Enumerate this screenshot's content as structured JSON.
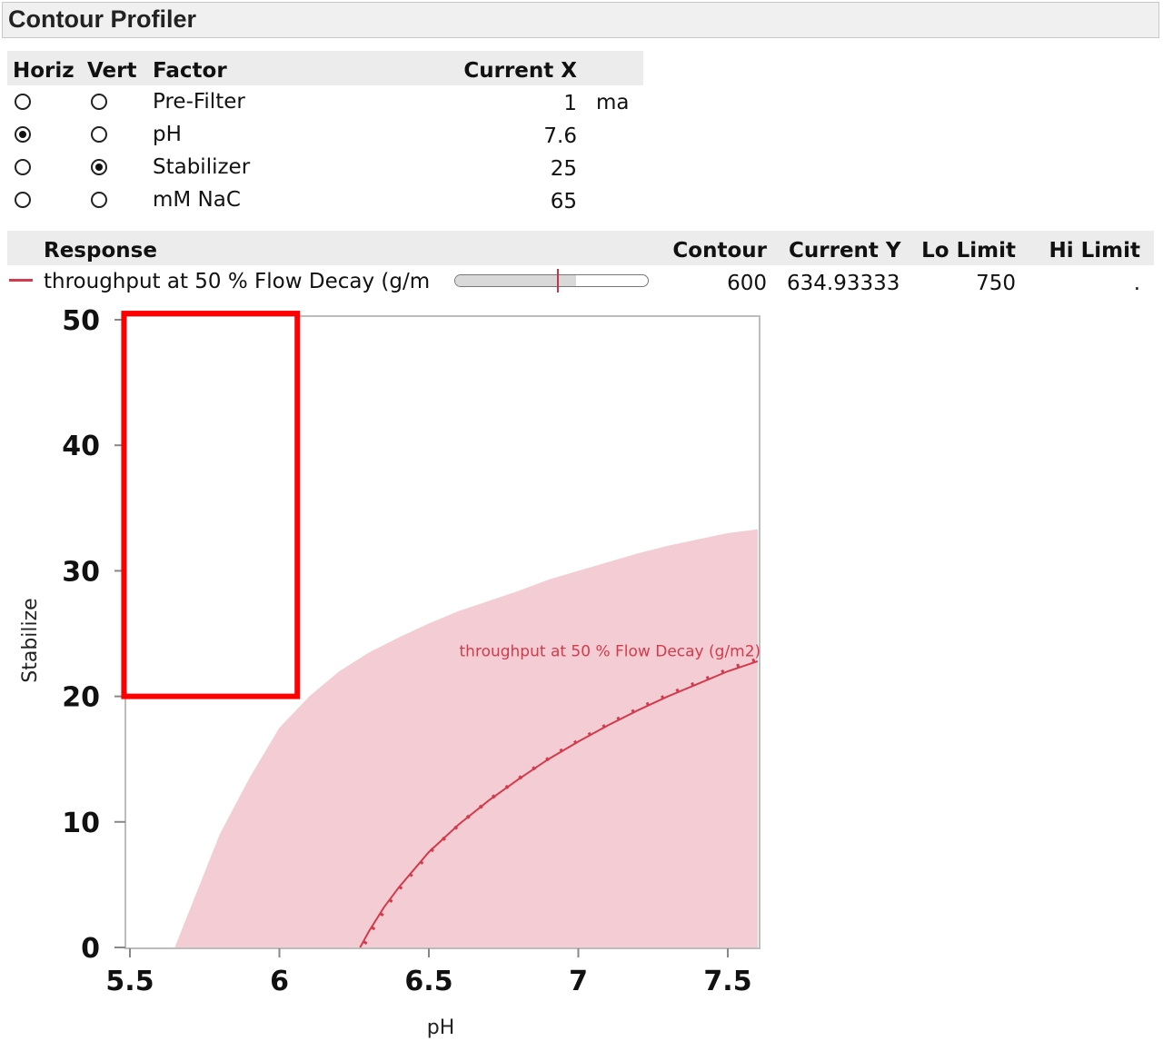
{
  "window": {
    "title": "Contour Profiler"
  },
  "factor_table": {
    "headers": {
      "horiz": "Horiz",
      "vert": "Vert",
      "factor": "Factor",
      "current_x": "Current X"
    },
    "rows": [
      {
        "factor": "Pre-Filter",
        "value": "1",
        "unit": "ma",
        "horiz": false,
        "vert": false
      },
      {
        "factor": "pH",
        "value": "7.6",
        "unit": "",
        "horiz": true,
        "vert": false
      },
      {
        "factor": "Stabilizer",
        "value": "25",
        "unit": "",
        "horiz": false,
        "vert": true
      },
      {
        "factor": "mM NaC",
        "value": "65",
        "unit": "",
        "horiz": false,
        "vert": false
      }
    ]
  },
  "response_table": {
    "headers": {
      "response": "Response",
      "contour": "Contour",
      "current_y": "Current Y",
      "lo_limit": "Lo Limit",
      "hi_limit": "Hi Limit"
    },
    "row": {
      "name": "throughput at 50 % Flow Decay  (g/m",
      "color": "#d33b4c",
      "contour": "600",
      "current_y": "634.93333",
      "lo_limit": "750",
      "hi_limit": ".",
      "slider_fill_fraction": 0.63,
      "slider_marker_fraction": 0.53
    }
  },
  "chart_data": {
    "type": "contour",
    "xlabel": "pH",
    "ylabel": "Stabilize",
    "xlim": [
      5.5,
      7.6
    ],
    "ylim": [
      0,
      50
    ],
    "xticks": [
      5.5,
      6,
      6.5,
      7,
      7.5
    ],
    "xtick_labels": [
      "5.5",
      "6",
      "6.5",
      "7",
      "7.5"
    ],
    "yticks": [
      0,
      10,
      20,
      30,
      40,
      50
    ],
    "ytick_labels": [
      "0",
      "10",
      "20",
      "30",
      "40",
      "50"
    ],
    "shaded_region": {
      "description": "infeasible region below Lo Limit",
      "color": "#f3cdd3",
      "boundary": [
        {
          "x": 5.65,
          "y": 0
        },
        {
          "x": 5.7,
          "y": 3
        },
        {
          "x": 5.75,
          "y": 6
        },
        {
          "x": 5.8,
          "y": 9
        },
        {
          "x": 5.9,
          "y": 13.5
        },
        {
          "x": 6.0,
          "y": 17.5
        },
        {
          "x": 6.1,
          "y": 20
        },
        {
          "x": 6.2,
          "y": 22
        },
        {
          "x": 6.3,
          "y": 23.5
        },
        {
          "x": 6.4,
          "y": 24.7
        },
        {
          "x": 6.5,
          "y": 25.8
        },
        {
          "x": 6.6,
          "y": 26.8
        },
        {
          "x": 6.7,
          "y": 27.6
        },
        {
          "x": 6.8,
          "y": 28.4
        },
        {
          "x": 6.9,
          "y": 29.3
        },
        {
          "x": 7.0,
          "y": 30
        },
        {
          "x": 7.1,
          "y": 30.7
        },
        {
          "x": 7.2,
          "y": 31.4
        },
        {
          "x": 7.3,
          "y": 32
        },
        {
          "x": 7.4,
          "y": 32.5
        },
        {
          "x": 7.5,
          "y": 33
        },
        {
          "x": 7.6,
          "y": 33.3
        }
      ]
    },
    "contour_line": {
      "label": "throughput at 50 % Flow Decay  (g/m2)",
      "color": "#d33b4c",
      "points": [
        {
          "x": 6.27,
          "y": 0
        },
        {
          "x": 6.3,
          "y": 1.3
        },
        {
          "x": 6.35,
          "y": 3.2
        },
        {
          "x": 6.4,
          "y": 4.8
        },
        {
          "x": 6.45,
          "y": 6.2
        },
        {
          "x": 6.5,
          "y": 7.6
        },
        {
          "x": 6.6,
          "y": 9.8
        },
        {
          "x": 6.7,
          "y": 11.7
        },
        {
          "x": 6.8,
          "y": 13.4
        },
        {
          "x": 6.9,
          "y": 15
        },
        {
          "x": 7.0,
          "y": 16.4
        },
        {
          "x": 7.1,
          "y": 17.7
        },
        {
          "x": 7.2,
          "y": 18.9
        },
        {
          "x": 7.3,
          "y": 20
        },
        {
          "x": 7.4,
          "y": 21
        },
        {
          "x": 7.5,
          "y": 22
        },
        {
          "x": 7.6,
          "y": 22.8
        }
      ]
    }
  },
  "annotation": {
    "color": "#ff0000",
    "x_range": [
      5.48,
      6.06
    ],
    "y_range": [
      20,
      50.5
    ]
  }
}
